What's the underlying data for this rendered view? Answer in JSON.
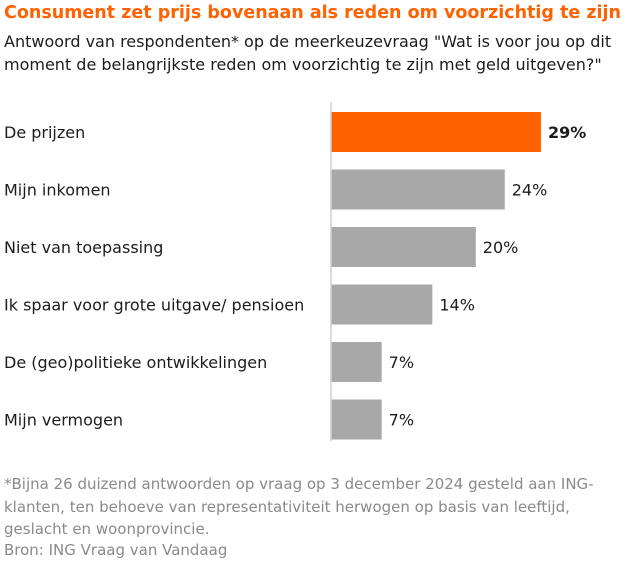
{
  "chart_data": {
    "type": "bar",
    "orientation": "horizontal",
    "title": "Consument zet prijs bovenaan als reden om voorzichtig te zijn",
    "subtitle": "Antwoord van respondenten* op de meerkeuzevraag \"Wat is voor jou op dit moment de belangrijkste reden om voorzichtig te zijn met geld uitgeven?\"",
    "categories": [
      "De prijzen",
      "Mijn inkomen",
      "Niet van toepassing",
      "Ik spaar voor grote uitgave/ pensioen",
      "De (geo)politieke ontwikkelingen",
      "Mijn vermogen"
    ],
    "values": [
      29,
      24,
      20,
      14,
      7,
      7
    ],
    "value_labels": [
      "29%",
      "24%",
      "20%",
      "14%",
      "7%",
      "7%"
    ],
    "highlight_index": 0,
    "colors": {
      "highlight": "#ff6200",
      "default": "#a8a8a8",
      "axis": "#cfcfcf",
      "text": "#1c1c1c"
    },
    "xlim": [
      0,
      35
    ],
    "gridlines": false,
    "legend": "none"
  },
  "footnote": "*Bijna 26 duizend antwoorden op vraag op 3 december 2024 gesteld aan ING-klanten, ten behoeve van representativiteit herwogen op basis van leeftijd, geslacht en woonprovincie.",
  "source": "Bron: ING Vraag van Vandaag"
}
